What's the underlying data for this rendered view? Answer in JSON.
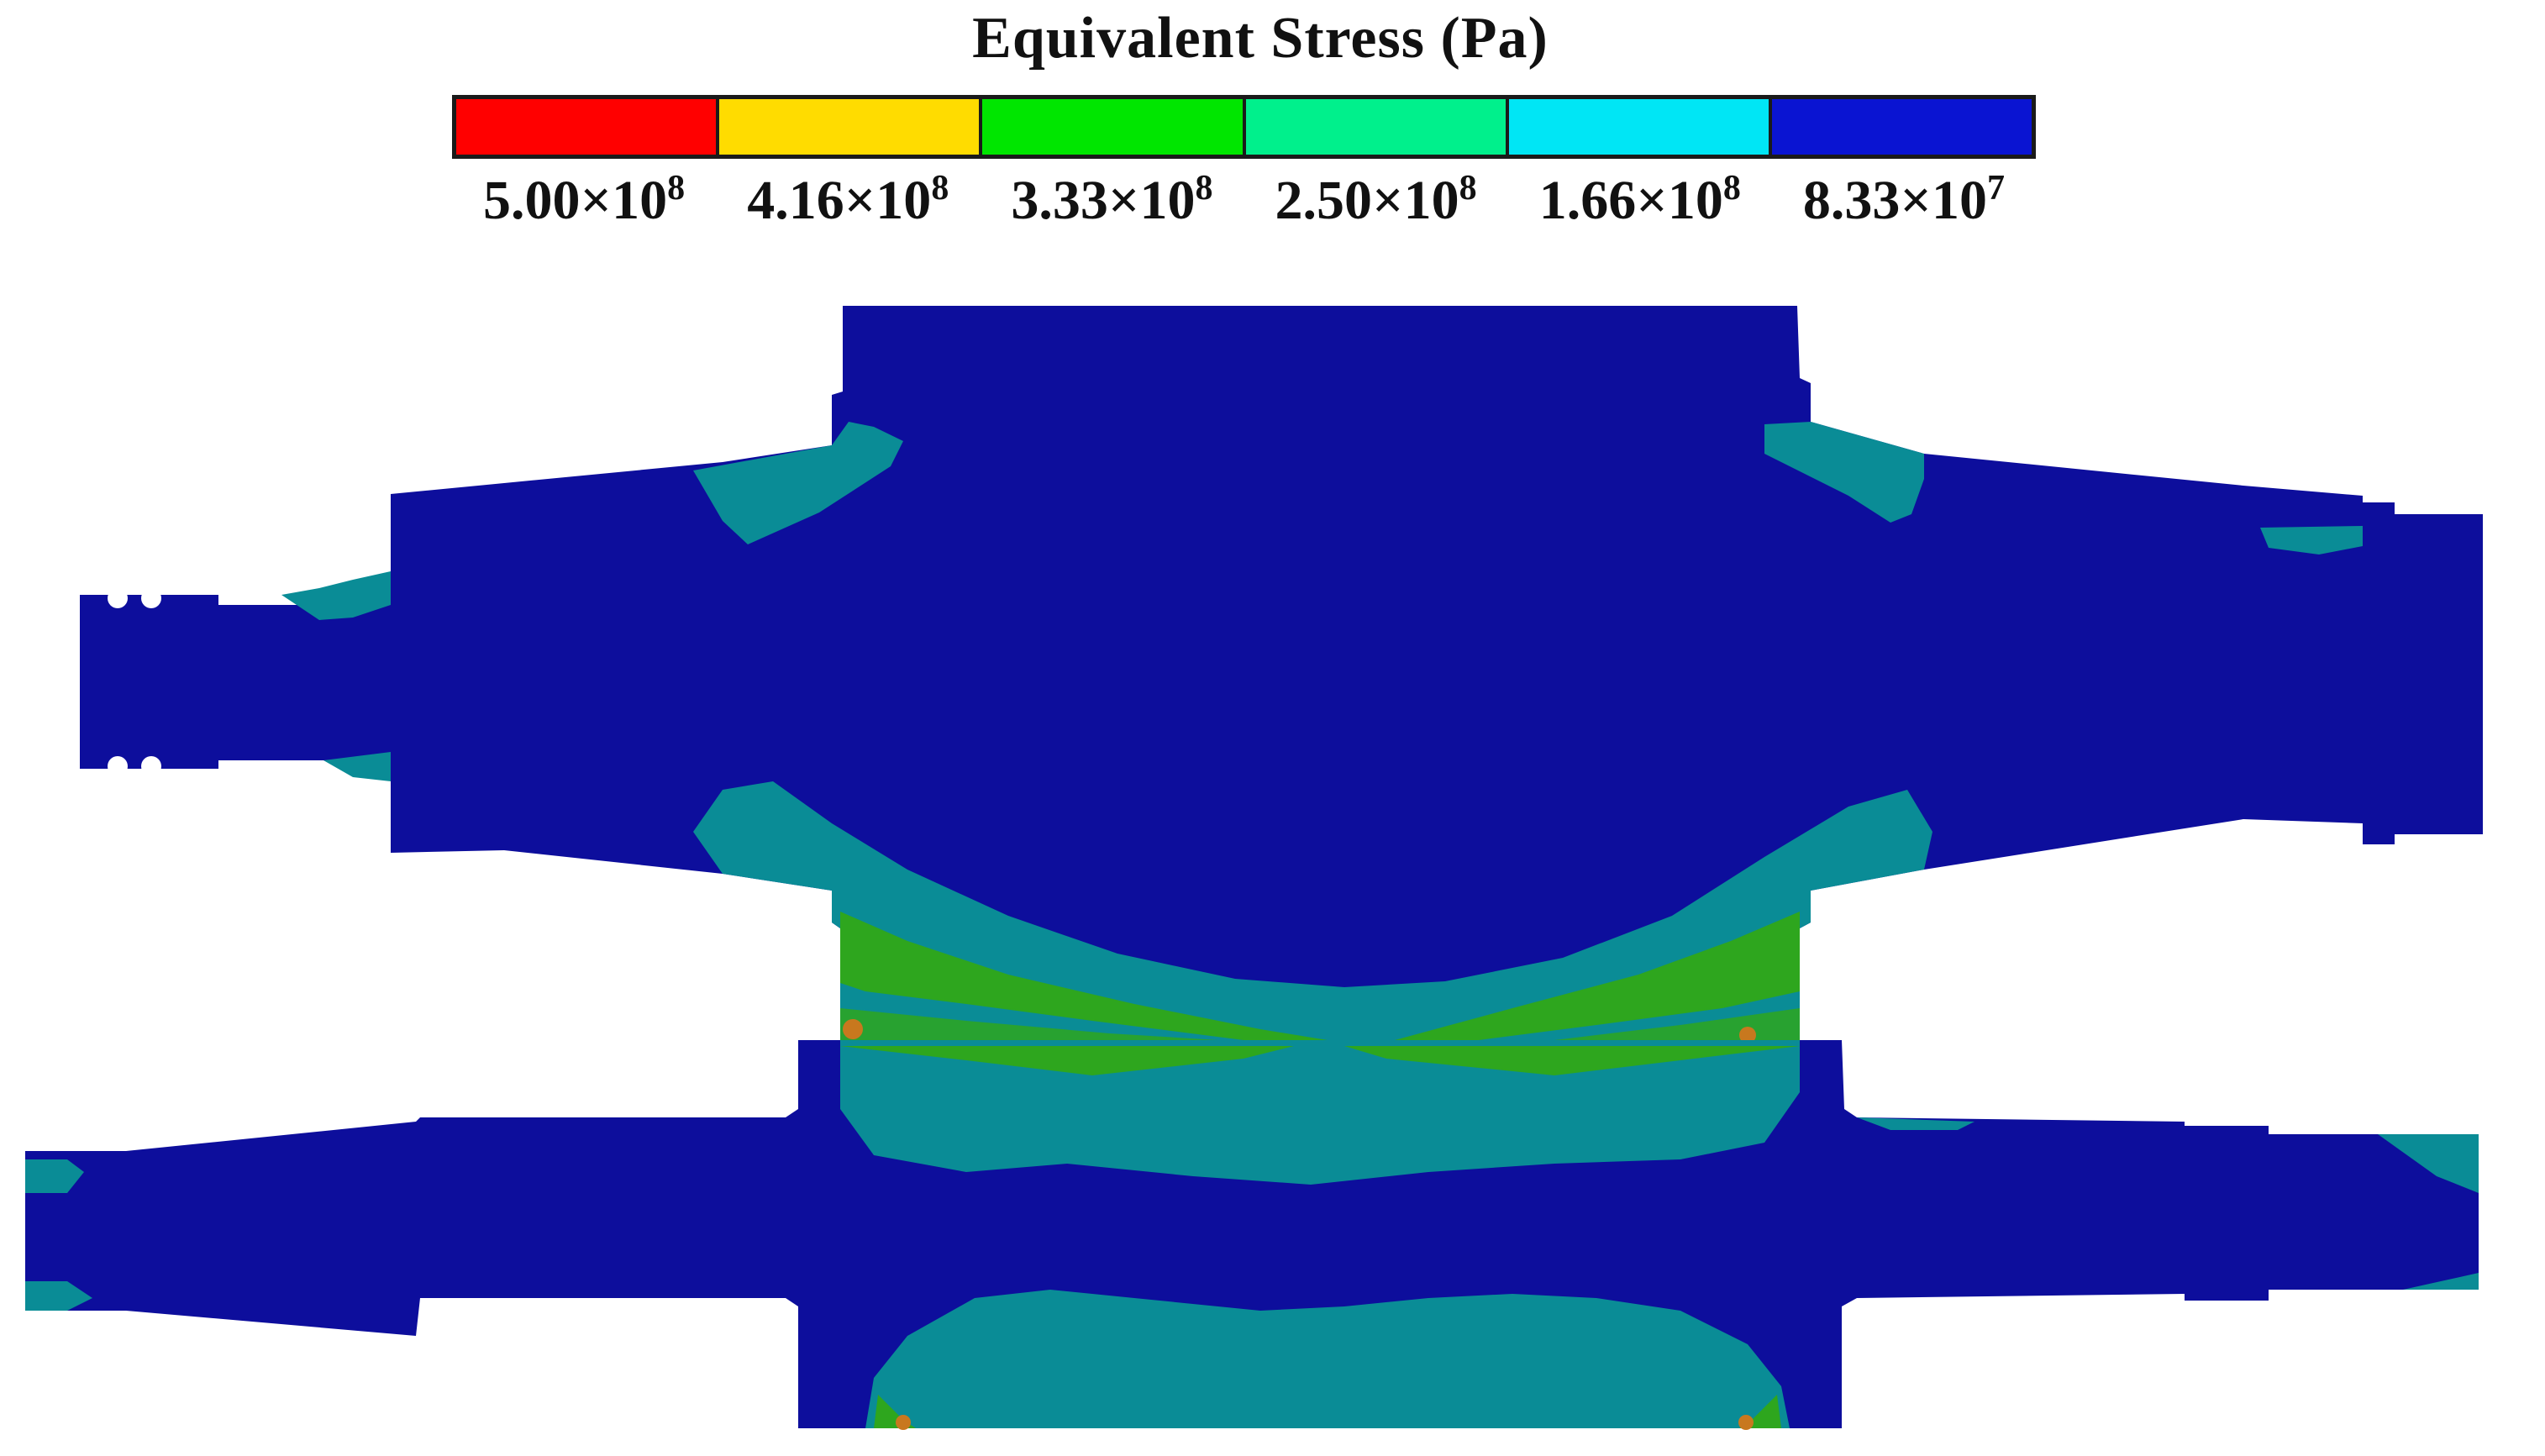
{
  "legend": {
    "title": "Equivalent Stress (Pa)",
    "levels": [
      {
        "mantissa": "5.00×10",
        "exponent": "8",
        "color": "#ff0000"
      },
      {
        "mantissa": "4.16×10",
        "exponent": "8",
        "color": "#ffdc00"
      },
      {
        "mantissa": "3.33×10",
        "exponent": "8",
        "color": "#00e600"
      },
      {
        "mantissa": "2.50×10",
        "exponent": "8",
        "color": "#00f08c"
      },
      {
        "mantissa": "1.66×10",
        "exponent": "8",
        "color": "#00e6f5"
      },
      {
        "mantissa": "8.33×10",
        "exponent": "7",
        "color": "#0a14d2"
      }
    ]
  },
  "colors": {
    "low_stress": "#0d0e9c",
    "band_teal": "#0a8c96",
    "band_green": "#2ea61e",
    "band_orange": "#c8781e"
  }
}
